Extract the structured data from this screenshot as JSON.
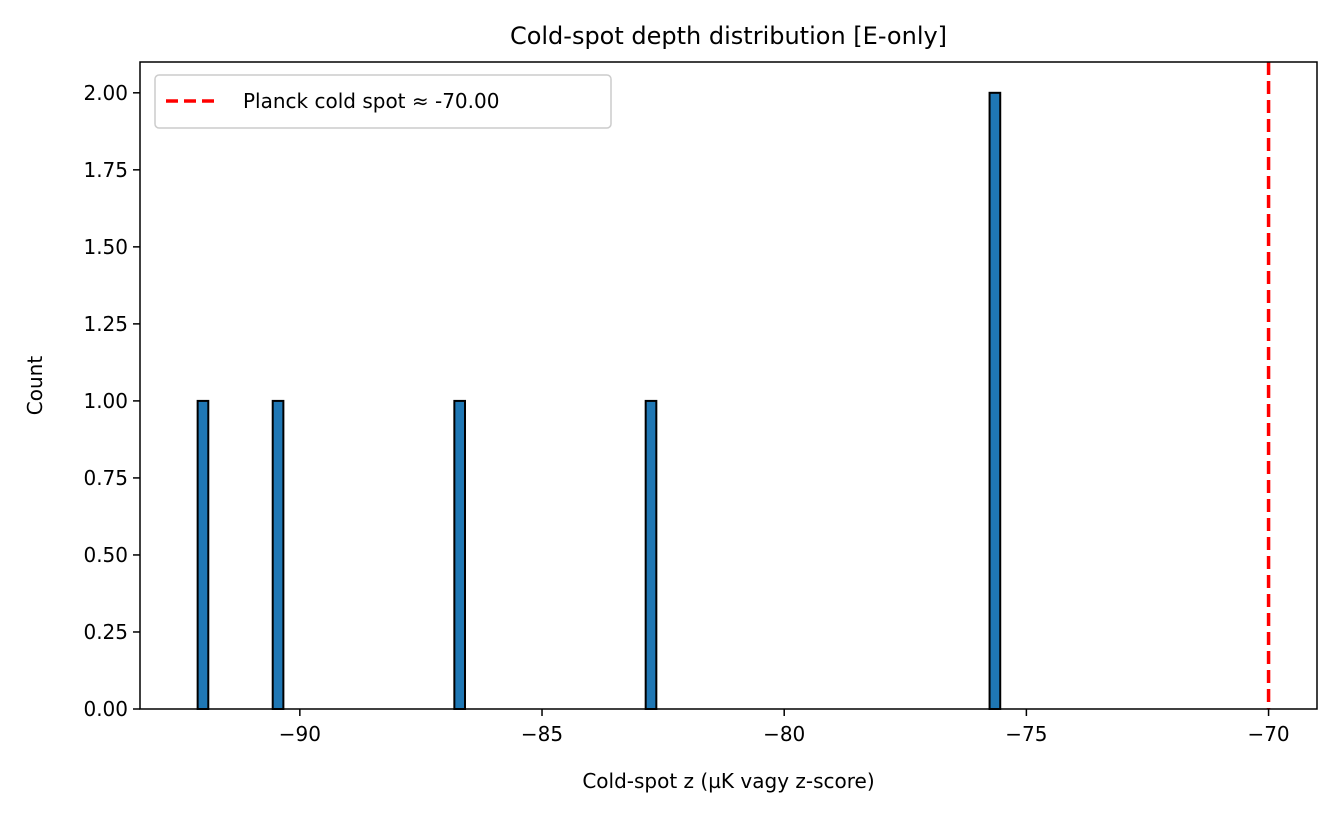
{
  "chart_data": {
    "type": "bar",
    "title": "Cold-spot depth distribution [E-only]",
    "xlabel": "Cold-spot z (µK vagy z-score)",
    "ylabel": "Count",
    "xlim": [
      -93.3,
      -69.0
    ],
    "ylim": [
      0,
      2.1
    ],
    "bin_width": 0.22,
    "bars": [
      {
        "x": -92.0,
        "value": 1
      },
      {
        "x": -90.45,
        "value": 1
      },
      {
        "x": -86.7,
        "value": 1
      },
      {
        "x": -82.75,
        "value": 1
      },
      {
        "x": -75.65,
        "value": 2
      }
    ],
    "xticks": [
      -90,
      -85,
      -80,
      -75,
      -70
    ],
    "xtick_labels": [
      "−90",
      "−85",
      "−80",
      "−75",
      "−70"
    ],
    "yticks": [
      0,
      0.25,
      0.5,
      0.75,
      1.0,
      1.25,
      1.5,
      1.75,
      2.0
    ],
    "ytick_labels": [
      "0.00",
      "0.25",
      "0.50",
      "0.75",
      "1.00",
      "1.25",
      "1.50",
      "1.75",
      "2.00"
    ],
    "reference_line": {
      "x": -70.0,
      "label": "Planck cold spot ≈ -70.00",
      "color": "#ff0000",
      "style": "dashed"
    },
    "bar_color": "#1f77b4",
    "edge_color": "#000000",
    "grid": false,
    "legend_position": "top-left"
  }
}
